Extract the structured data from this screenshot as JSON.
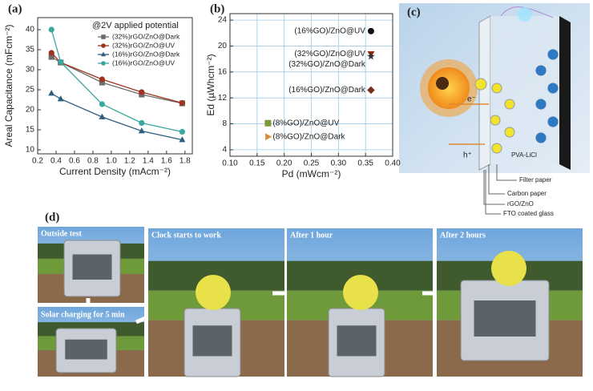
{
  "chart_data": [
    {
      "type": "line",
      "title": "(a)",
      "annotation": "@2V applied potential",
      "xlabel": "Current Density (mAcm⁻²)",
      "ylabel": "Areal Capacitance (mFcm⁻²)",
      "x": [
        0.35,
        0.45,
        0.9,
        1.33,
        1.77
      ],
      "series": [
        {
          "name": "(32%)rGO/ZnO@Dark",
          "color": "#6d6d6d",
          "marker": "square",
          "values": [
            33.2,
            31.8,
            26.8,
            23.8,
            21.6
          ]
        },
        {
          "name": "(32%)rGO/ZnO@UV",
          "color": "#a0341c",
          "marker": "circle",
          "values": [
            34.2,
            31.8,
            27.6,
            24.4,
            21.7
          ]
        },
        {
          "name": "(16%)rGO/ZnO@Dark",
          "color": "#2e5e7e",
          "marker": "triangle",
          "values": [
            24.1,
            22.7,
            18.2,
            14.7,
            12.5
          ]
        },
        {
          "name": "(16%)rGO/ZnO@UV",
          "color": "#3aa6a0",
          "marker": "circle",
          "values": [
            40,
            31.9,
            21.4,
            16.7,
            14.5
          ]
        }
      ],
      "xlim": [
        0.2,
        1.88
      ],
      "xticks": [
        0.2,
        0.4,
        0.6,
        0.8,
        {
          "value": 1,
          "label": "1.0"
        },
        1.2,
        1.4,
        1.6,
        1.8
      ],
      "ylim": [
        9,
        43
      ],
      "yticks": [
        10,
        15,
        20,
        25,
        30,
        35,
        40
      ],
      "grid": false,
      "legend": "upper right"
    },
    {
      "type": "scatter",
      "title": "(b)",
      "xlabel": "Pd (mWcm⁻²)",
      "ylabel": "Ed (µWhcm⁻²)",
      "series": [
        {
          "name": "(16%GO)/ZnO@UV",
          "color": "#111111",
          "marker": "circle",
          "x": [
            0.36
          ],
          "values": [
            22.3
          ]
        },
        {
          "name": "(32%GO)/ZnO@UV",
          "color": "#8b2a10",
          "marker": "triangle-down",
          "x": [
            0.36
          ],
          "values": [
            18.8
          ]
        },
        {
          "name": "(32%GO)/ZnO@Dark",
          "color": "#333333",
          "marker": "star",
          "x": [
            0.36
          ],
          "values": [
            18.4
          ]
        },
        {
          "name": "(16%GO)/ZnO@Dark",
          "color": "#7a2e20",
          "marker": "diamond",
          "x": [
            0.36
          ],
          "values": [
            13.2
          ]
        },
        {
          "name": "(8%GO)/ZnO@UV",
          "color": "#7a9a3a",
          "marker": "square",
          "x": [
            0.17
          ],
          "values": [
            8.1
          ]
        },
        {
          "name": "(8%GO)/ZnO@Dark",
          "color": "#e08a30",
          "marker": "triangle-right",
          "x": [
            0.17
          ],
          "values": [
            6
          ]
        }
      ],
      "xlim": [
        0.1,
        0.4
      ],
      "xticks": [
        {
          "value": 0.1,
          "label": "0.10"
        },
        0.15,
        {
          "value": 0.2,
          "label": "0.20"
        },
        0.25,
        {
          "value": 0.3,
          "label": "0.30"
        },
        0.35,
        {
          "value": 0.4,
          "label": "0.40"
        }
      ],
      "ylim": [
        3,
        25
      ],
      "yticks": [
        4,
        8,
        12,
        16,
        20,
        24
      ],
      "grid": true
    }
  ],
  "panels": {
    "c": {
      "label": "(c)",
      "electron": "e⁻",
      "hole": "h⁺",
      "electrolyte": "PVA-LiCl",
      "layers": [
        "Filter paper",
        "Carbon paper",
        "rGO/ZnO",
        "FTO coated glass"
      ]
    },
    "d": {
      "label": "(d)",
      "captions": [
        "Outside test",
        "Solar charging for 5 min",
        "Clock starts to work",
        "After 1 hour",
        "After 2 hours"
      ]
    }
  }
}
